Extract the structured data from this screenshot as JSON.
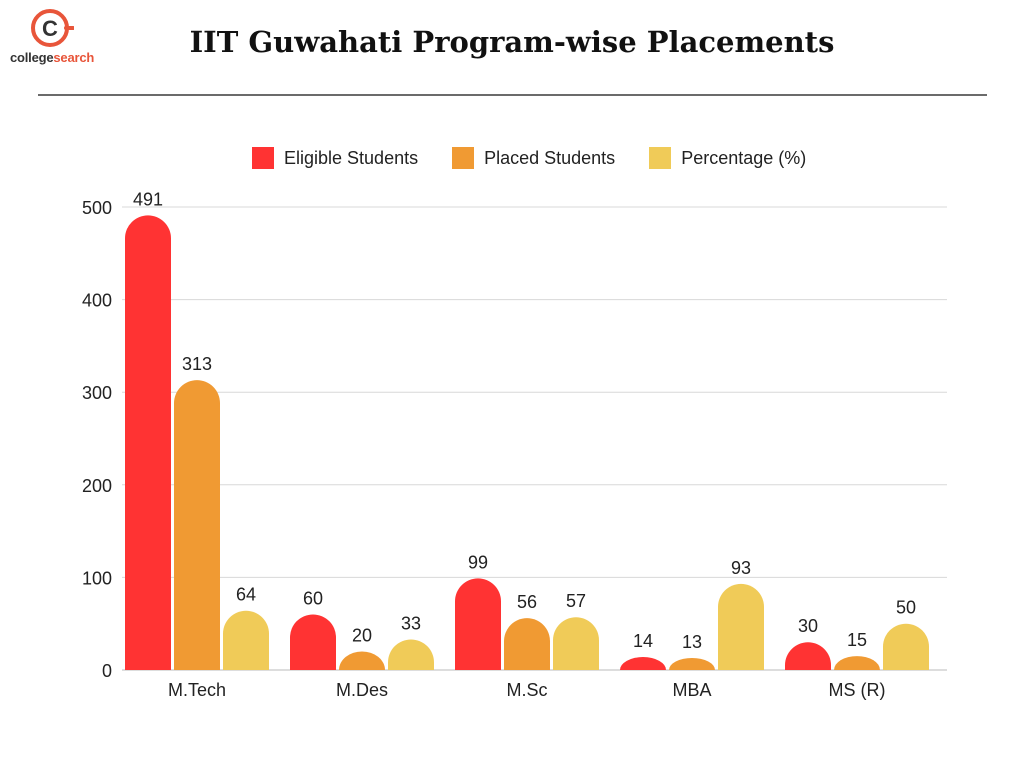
{
  "brand": {
    "name_part1": "college",
    "name_part2": "search",
    "accent_color": "#e8553a"
  },
  "page_title": "IIT Guwahati Program-wise Placements",
  "chart_data": {
    "type": "bar",
    "title": "IIT Guwahati Program-wise Placements",
    "categories": [
      "M.Tech",
      "M.Des",
      "M.Sc",
      "MBA",
      "MS (R)"
    ],
    "series": [
      {
        "name": "Eligible Students",
        "color": "#ff3333",
        "values": [
          491,
          60,
          99,
          14,
          30
        ]
      },
      {
        "name": "Placed Students",
        "color": "#f09a33",
        "values": [
          313,
          20,
          56,
          13,
          15
        ]
      },
      {
        "name": "Percentage (%)",
        "color": "#f0cb58",
        "values": [
          64,
          33,
          57,
          93,
          50
        ]
      }
    ],
    "ylim": [
      0,
      500
    ],
    "yticks": [
      0,
      100,
      200,
      300,
      400,
      500
    ],
    "grid": true,
    "legend_position": "top-center"
  }
}
